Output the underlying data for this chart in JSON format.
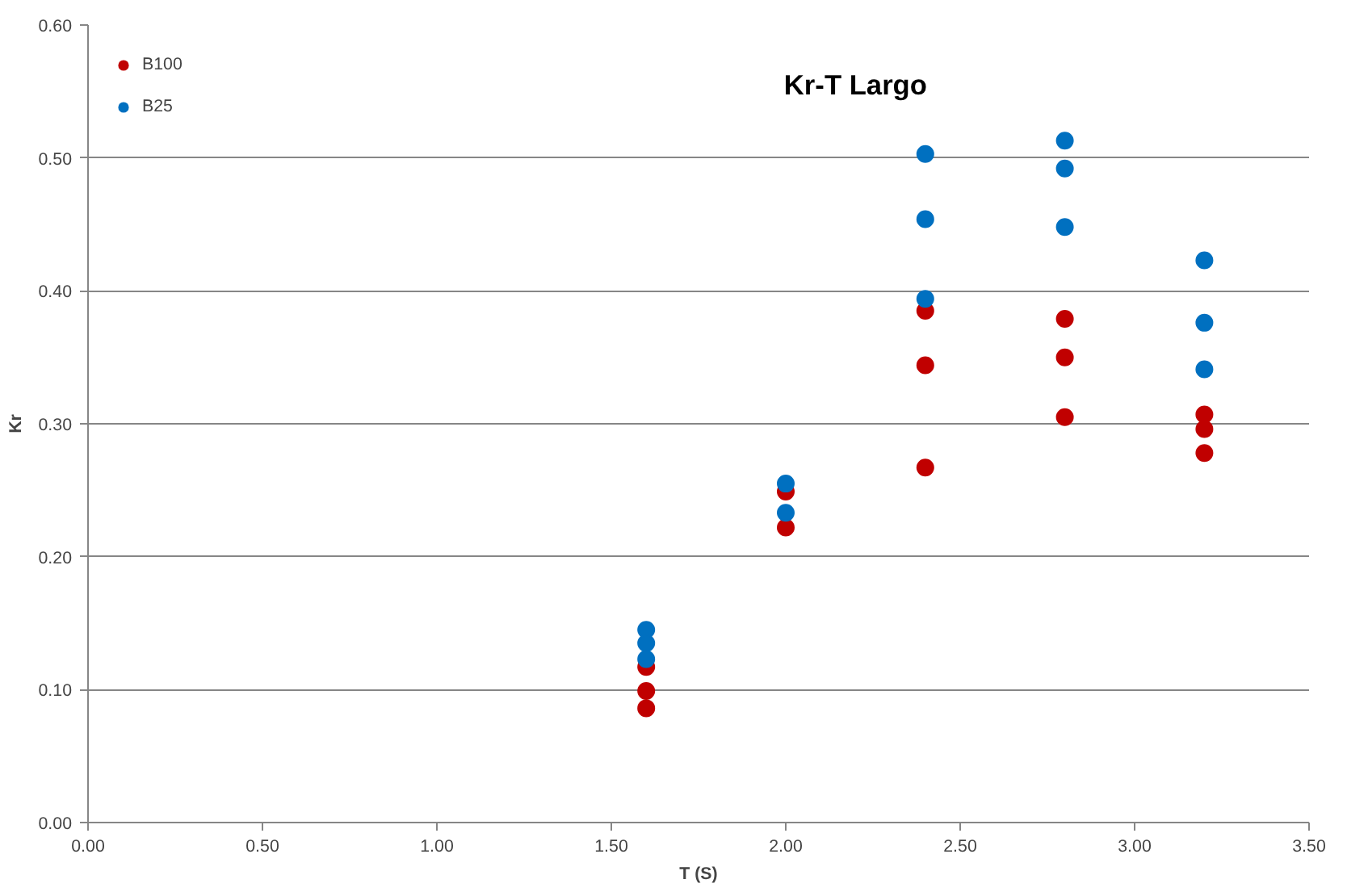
{
  "chart_data": {
    "type": "scatter",
    "title": "Kr-T Largo",
    "xlabel": "T (S)",
    "ylabel": "Kr",
    "xlim": [
      0,
      3.5
    ],
    "xticks": [
      {
        "value": 0,
        "label": "0.00"
      },
      {
        "value": 0.5,
        "label": "0.50"
      },
      {
        "value": 1,
        "label": "1.00"
      },
      {
        "value": 1.5,
        "label": "1.50"
      },
      {
        "value": 2,
        "label": "2.00"
      },
      {
        "value": 2.5,
        "label": "2.50"
      },
      {
        "value": 3,
        "label": "3.00"
      },
      {
        "value": 3.5,
        "label": "3.50"
      }
    ],
    "ylim": [
      0,
      0.6
    ],
    "yticks": [
      {
        "value": 0,
        "label": "0.00"
      },
      {
        "value": 0.1,
        "label": "0.10"
      },
      {
        "value": 0.2,
        "label": "0.20"
      },
      {
        "value": 0.3,
        "label": "0.30"
      },
      {
        "value": 0.4,
        "label": "0.40"
      },
      {
        "value": 0.5,
        "label": "0.50"
      },
      {
        "value": 0.6,
        "label": "0.60"
      }
    ],
    "grid": "y",
    "legend": "top left",
    "marker": "circle",
    "series": [
      {
        "name": "B100",
        "color": "#c00000",
        "x": [
          1.6,
          1.6,
          1.6,
          2.0,
          2.0,
          2.4,
          2.4,
          2.4,
          2.8,
          2.8,
          2.8,
          3.2,
          3.2,
          3.2
        ],
        "values": [
          0.117,
          0.099,
          0.086,
          0.249,
          0.222,
          0.385,
          0.344,
          0.267,
          0.379,
          0.35,
          0.305,
          0.307,
          0.296,
          0.278
        ]
      },
      {
        "name": "B25",
        "color": "#0070c0",
        "x": [
          1.6,
          1.6,
          1.6,
          2.0,
          2.0,
          2.4,
          2.4,
          2.4,
          2.8,
          2.8,
          2.8,
          3.2,
          3.2,
          3.2
        ],
        "values": [
          0.145,
          0.135,
          0.123,
          0.255,
          0.233,
          0.503,
          0.454,
          0.394,
          0.513,
          0.492,
          0.448,
          0.423,
          0.376,
          0.341
        ]
      }
    ]
  }
}
